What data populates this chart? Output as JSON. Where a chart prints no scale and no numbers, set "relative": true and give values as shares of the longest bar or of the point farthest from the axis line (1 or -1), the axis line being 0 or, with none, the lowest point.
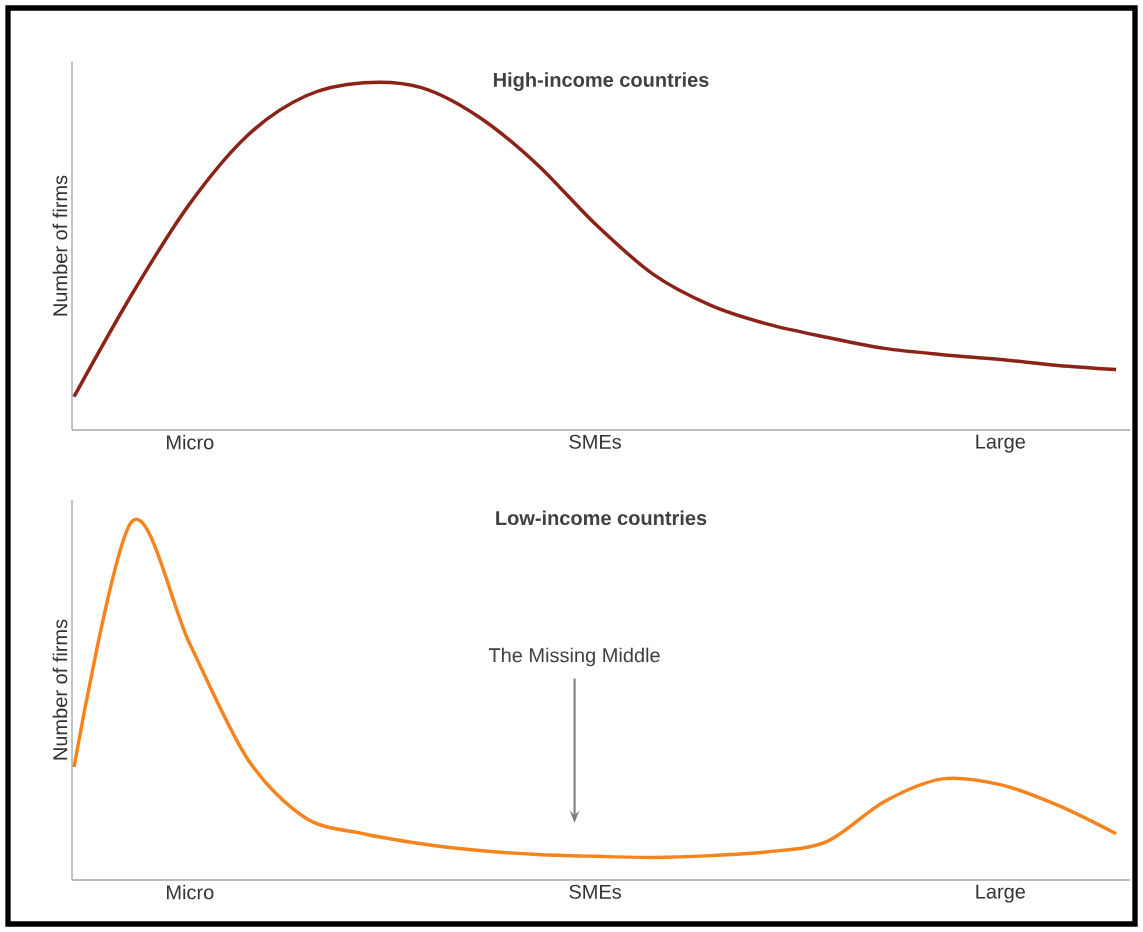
{
  "chart_data": [
    {
      "type": "line",
      "title": "High-income countries",
      "ylabel": "Number of firms",
      "relative": true,
      "categories": [
        null,
        null,
        "Micro",
        null,
        null,
        null,
        null,
        null,
        null,
        "SMEs",
        null,
        null,
        null,
        null,
        null,
        null,
        "Large",
        null,
        null
      ],
      "series": [
        {
          "color": "#8b2318",
          "values": [
            0.096,
            0.391,
            0.652,
            0.849,
            0.962,
            1.0,
            0.986,
            0.901,
            0.765,
            0.594,
            0.449,
            0.359,
            0.304,
            0.267,
            0.235,
            0.217,
            0.203,
            0.186,
            0.174
          ]
        }
      ]
    },
    {
      "type": "line",
      "title": "Low-income countries",
      "ylabel": "Number of firms",
      "relative": true,
      "categories": [
        null,
        null,
        "Micro",
        null,
        null,
        null,
        null,
        null,
        null,
        "SMEs",
        null,
        null,
        null,
        null,
        null,
        null,
        "Large",
        null,
        null
      ],
      "annotations": [
        "The Missing Middle"
      ],
      "series": [
        {
          "color": "#f5841f",
          "values": [
            0.315,
            1.0,
            0.658,
            0.337,
            0.173,
            0.129,
            0.101,
            0.082,
            0.071,
            0.066,
            0.063,
            0.068,
            0.079,
            0.107,
            0.219,
            0.282,
            0.266,
            0.208,
            0.129
          ]
        }
      ]
    }
  ]
}
